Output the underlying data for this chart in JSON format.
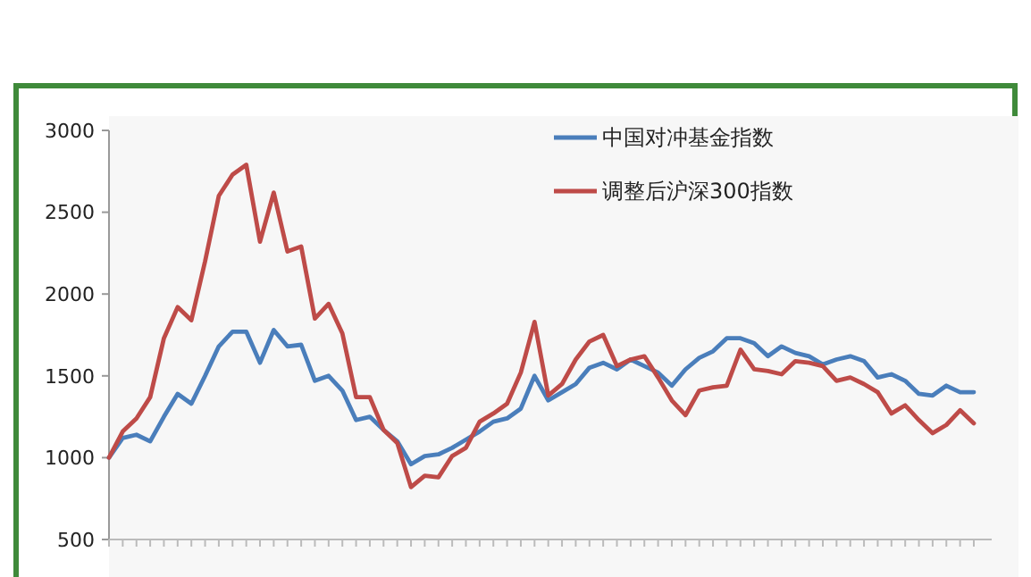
{
  "chart_data": {
    "type": "line",
    "categories": [
      null,
      null,
      null,
      null,
      null,
      null,
      null,
      null,
      null,
      null,
      null,
      null,
      null,
      null,
      null,
      null,
      null,
      null,
      null,
      null,
      null,
      null,
      null,
      null,
      null,
      null,
      null,
      null,
      null,
      null,
      null,
      null,
      null,
      null,
      null,
      null,
      null,
      null,
      null,
      null,
      null,
      null,
      null,
      null,
      null,
      null,
      null,
      null,
      null,
      null,
      null,
      null,
      null,
      null,
      null,
      null,
      null,
      null,
      null,
      null,
      null,
      null,
      null,
      null
    ],
    "series": [
      {
        "name": "中国对冲基金指数",
        "color": "#4a7ebb",
        "values": [
          1000,
          1120,
          1140,
          1100,
          1250,
          1390,
          1330,
          1500,
          1680,
          1770,
          1770,
          1580,
          1780,
          1680,
          1690,
          1470,
          1500,
          1410,
          1230,
          1250,
          1170,
          1100,
          960,
          1010,
          1020,
          1060,
          1110,
          1160,
          1220,
          1240,
          1300,
          1500,
          1350,
          1400,
          1450,
          1550,
          1580,
          1540,
          1600,
          1560,
          1520,
          1440,
          1540,
          1610,
          1650,
          1730,
          1730,
          1700,
          1620,
          1680,
          1640,
          1620,
          1570,
          1600,
          1620,
          1590,
          1490,
          1510,
          1470,
          1390,
          1380,
          1440,
          1400,
          1400
        ]
      },
      {
        "name": "调整后沪深300指数",
        "color": "#be4b48",
        "values": [
          1000,
          1160,
          1240,
          1370,
          1730,
          1920,
          1840,
          2200,
          2600,
          2730,
          2790,
          2320,
          2620,
          2260,
          2290,
          1850,
          1940,
          1760,
          1370,
          1370,
          1170,
          1090,
          820,
          890,
          880,
          1010,
          1060,
          1220,
          1270,
          1330,
          1520,
          1830,
          1380,
          1450,
          1600,
          1710,
          1750,
          1560,
          1600,
          1620,
          1490,
          1350,
          1260,
          1410,
          1430,
          1440,
          1660,
          1540,
          1530,
          1510,
          1590,
          1580,
          1560,
          1470,
          1490,
          1450,
          1400,
          1270,
          1320,
          1230,
          1150,
          1200,
          1290,
          1210
        ]
      }
    ],
    "ylim": [
      500,
      3000
    ],
    "yticks": [
      500,
      1000,
      1500,
      2000,
      2500,
      3000
    ],
    "tick_labels": "y",
    "legend": "top right"
  }
}
